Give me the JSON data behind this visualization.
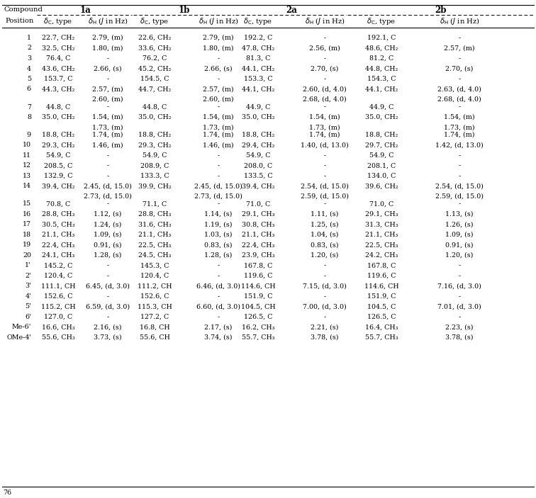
{
  "compound_headers": [
    "1a",
    "1b",
    "2a",
    "2b"
  ],
  "rows": [
    [
      "1",
      "22.7, CH₂",
      "2.79, (m)",
      "22.6, CH₂",
      "2.79, (m)",
      "192.2, C",
      "-",
      "192.1, C",
      "-"
    ],
    [
      "2",
      "32.5, CH₂",
      "1.80, (m)",
      "33.6, CH₂",
      "1.80, (m)",
      "47.8, CH₂",
      "2.56, (m)",
      "48.6, CH₂",
      "2.57, (m)"
    ],
    [
      "3",
      "76.4, C",
      "-",
      "76.2, C",
      "-",
      "81.3, C",
      "-",
      "81.2, C",
      "-"
    ],
    [
      "4",
      "43.6, CH₂",
      "2.66, (s)",
      "45.2, CH₂",
      "2.66, (s)",
      "44.1, CH₂",
      "2.70, (s)",
      "44.8, CH₂",
      "2.70, (s)"
    ],
    [
      "5",
      "153.7, C",
      "-",
      "154.5, C",
      "-",
      "153.3, C",
      "-",
      "154.3, C",
      "-"
    ],
    [
      "6",
      "44.3, CH₂",
      "2.57, (m)",
      "44.7, CH₂",
      "2.57, (m)",
      "44.1, CH₂",
      "2.60, (d, 4.0)",
      "44.1, CH₂",
      "2.63, (d, 4.0)"
    ],
    [
      "__cont__",
      "",
      "2.60, (m)",
      "",
      "2.60, (m)",
      "",
      "2.68, (d, 4.0)",
      "",
      "2.68, (d, 4.0)"
    ],
    [
      "7",
      "44.8, C",
      "-",
      "44.8, C",
      "-",
      "44.9, C",
      "-",
      "44.9, C",
      "-"
    ],
    [
      "8",
      "35.0, CH₂",
      "1.54, (m)",
      "35.0, CH₂",
      "1.54, (m)",
      "35.0, CH₂",
      "1.54, (m)",
      "35.0, CH₂",
      "1.54, (m)"
    ],
    [
      "__cont__",
      "",
      "1.73, (m)",
      "",
      "1.73, (m)",
      "",
      "1.73, (m)",
      "",
      "1.73, (m)"
    ],
    [
      "9",
      "18.8, CH₂",
      "1.74, (m)",
      "18.8, CH₂",
      "1.74, (m)",
      "18.8, CH₂",
      "1.74, (m)",
      "18.8, CH₂",
      "1.74, (m)"
    ],
    [
      "10",
      "29.3, CH₂",
      "1.46, (m)",
      "29.3, CH₂",
      "1.46, (m)",
      "29.4, CH₂",
      "1.40, (d, 13.0)",
      "29.7, CH₂",
      "1.42, (d, 13.0)"
    ],
    [
      "11",
      "54.9, C",
      "-",
      "54.9, C",
      "-",
      "54.9, C",
      "-",
      "54.9, C",
      "-"
    ],
    [
      "12",
      "208.5, C",
      "-",
      "208.9, C",
      "-",
      "208.0, C",
      "-",
      "208.1, C",
      "-"
    ],
    [
      "13",
      "132.9, C",
      "-",
      "133.3, C",
      "-",
      "133.5, C",
      "-",
      "134.0, C",
      "-"
    ],
    [
      "14",
      "39.4, CH₂",
      "2.45, (d, 15.0)",
      "39.9, CH₂",
      "2.45, (d, 15.0)",
      "39.4, CH₂",
      "2.54, (d, 15.0)",
      "39.6, CH₂",
      "2.54, (d, 15.0)"
    ],
    [
      "__cont__",
      "",
      "2.73, (d, 15.0)",
      "",
      "2.73, (d, 15.0)",
      "",
      "2.59, (d, 15.0)",
      "",
      "2.59, (d, 15.0)"
    ],
    [
      "15",
      "70.8, C",
      "-",
      "71.1, C",
      "-",
      "71.0, C",
      "-",
      "71.0, C",
      "-"
    ],
    [
      "16",
      "28.8, CH₃",
      "1.12, (s)",
      "28.8, CH₃",
      "1.14, (s)",
      "29.1, CH₃",
      "1.11, (s)",
      "29.1, CH₃",
      "1.13, (s)"
    ],
    [
      "17",
      "30.5, CH₃",
      "1.24, (s)",
      "31.6, CH₃",
      "1.19, (s)",
      "30.8, CH₃",
      "1.25, (s)",
      "31.3, CH₃",
      "1.26, (s)"
    ],
    [
      "18",
      "21.1, CH₃",
      "1.09, (s)",
      "21.1, CH₃",
      "1.03, (s)",
      "21.1, CH₃",
      "1.04, (s)",
      "21.1, CH₃",
      "1.09, (s)"
    ],
    [
      "19",
      "22.4, CH₃",
      "0.91, (s)",
      "22.5, CH₃",
      "0.83, (s)",
      "22.4, CH₃",
      "0.83, (s)",
      "22.5, CH₃",
      "0.91, (s)"
    ],
    [
      "20",
      "24.1, CH₃",
      "1.28, (s)",
      "24.5, CH₃",
      "1.28, (s)",
      "23.9, CH₃",
      "1.20, (s)",
      "24.2, CH₃",
      "1.20, (s)"
    ],
    [
      "1'",
      "145.2, C",
      "-",
      "145.3, C",
      "-",
      "167.8, C",
      "-",
      "167.8, C",
      "-"
    ],
    [
      "2'",
      "120.4, C",
      "-",
      "120.4, C",
      "-",
      "119.6, C",
      "-",
      "119.6, C",
      "-"
    ],
    [
      "3'",
      "111.1, CH",
      "6.45, (d, 3.0)",
      "111.2, CH",
      "6.46, (d, 3.0)",
      "114.6, CH",
      "7.15, (d, 3.0)",
      "114.6, CH",
      "7.16, (d, 3.0)"
    ],
    [
      "4'",
      "152.6, C",
      "-",
      "152.6, C",
      "-",
      "151.9, C",
      "-",
      "151.9, C",
      "-"
    ],
    [
      "5'",
      "115.2, CH",
      "6.59, (d, 3.0)",
      "115.3, CH",
      "6.60, (d, 3.0)",
      "104.5, CH",
      "7.00, (d, 3.0)",
      "104.5, C",
      "7.01, (d, 3.0)"
    ],
    [
      "6'",
      "127.0, C",
      "-",
      "127.2, C",
      "-",
      "126.5, C",
      "-",
      "126.5, C",
      "-"
    ],
    [
      "Me-6'",
      "16.6, CH₃",
      "2.16, (s)",
      "16.8, CH",
      "2.17, (s)",
      "16.2, CH₃",
      "2.21, (s)",
      "16.4, CH₃",
      "2.23, (s)"
    ],
    [
      "OMe-4'",
      "55.6, CH₃",
      "3.73, (s)",
      "55.6, CH",
      "3.74, (s)",
      "55.7, CH₃",
      "3.78, (s)",
      "55.7, CH₃",
      "3.78, (s)"
    ]
  ],
  "footer": "76",
  "bg_color": "#ffffff",
  "text_color": "#000000",
  "line_color": "#000000"
}
